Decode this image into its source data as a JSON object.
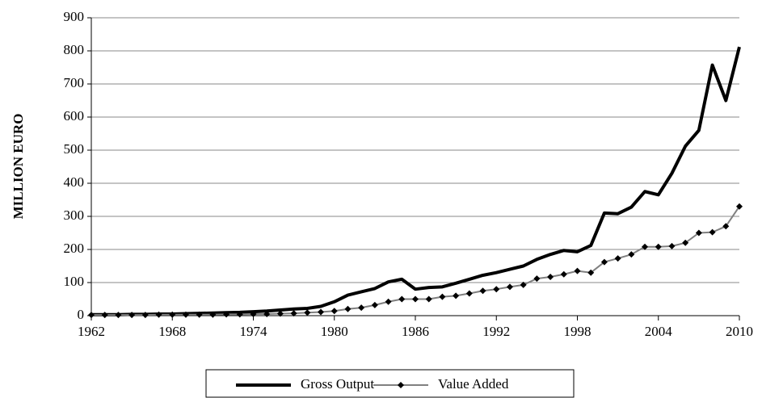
{
  "chart_data": {
    "type": "line",
    "y_label": "MILLION EURO",
    "x": [
      1962,
      1963,
      1964,
      1965,
      1966,
      1967,
      1968,
      1969,
      1970,
      1971,
      1972,
      1973,
      1974,
      1975,
      1976,
      1977,
      1978,
      1979,
      1980,
      1981,
      1982,
      1983,
      1984,
      1985,
      1986,
      1987,
      1988,
      1989,
      1990,
      1991,
      1992,
      1993,
      1994,
      1995,
      1996,
      1997,
      1998,
      1999,
      2000,
      2001,
      2002,
      2003,
      2004,
      2005,
      2006,
      2007,
      2008,
      2009,
      2010
    ],
    "series": [
      {
        "name": "Gross Output",
        "color": "#000000",
        "marker": false,
        "values": [
          3,
          3,
          3,
          4,
          4,
          5,
          5,
          6,
          7,
          8,
          9,
          10,
          12,
          14,
          17,
          20,
          22,
          28,
          42,
          62,
          72,
          82,
          102,
          110,
          80,
          85,
          87,
          98,
          110,
          122,
          130,
          140,
          150,
          170,
          185,
          197,
          193,
          212,
          310,
          308,
          328,
          375,
          365,
          430,
          512,
          560,
          757,
          650,
          812
        ]
      },
      {
        "name": "Value Added",
        "color": "#808080",
        "marker": true,
        "values": [
          2,
          2,
          2,
          2,
          2,
          3,
          3,
          3,
          3,
          3,
          4,
          4,
          5,
          5,
          6,
          7,
          9,
          11,
          14,
          20,
          24,
          32,
          42,
          50,
          50,
          50,
          57,
          60,
          67,
          75,
          80,
          87,
          93,
          112,
          117,
          125,
          135,
          130,
          162,
          173,
          185,
          208,
          208,
          210,
          220,
          250,
          252,
          270,
          330
        ]
      }
    ],
    "xlim": [
      1962,
      2010
    ],
    "xticks": [
      1962,
      1968,
      1974,
      1980,
      1986,
      1992,
      1998,
      2004,
      2010
    ],
    "ylim": [
      0,
      900
    ],
    "yticks": [
      0,
      100,
      200,
      300,
      400,
      500,
      600,
      700,
      800,
      900
    ],
    "grid": true,
    "legend": "bottom"
  }
}
